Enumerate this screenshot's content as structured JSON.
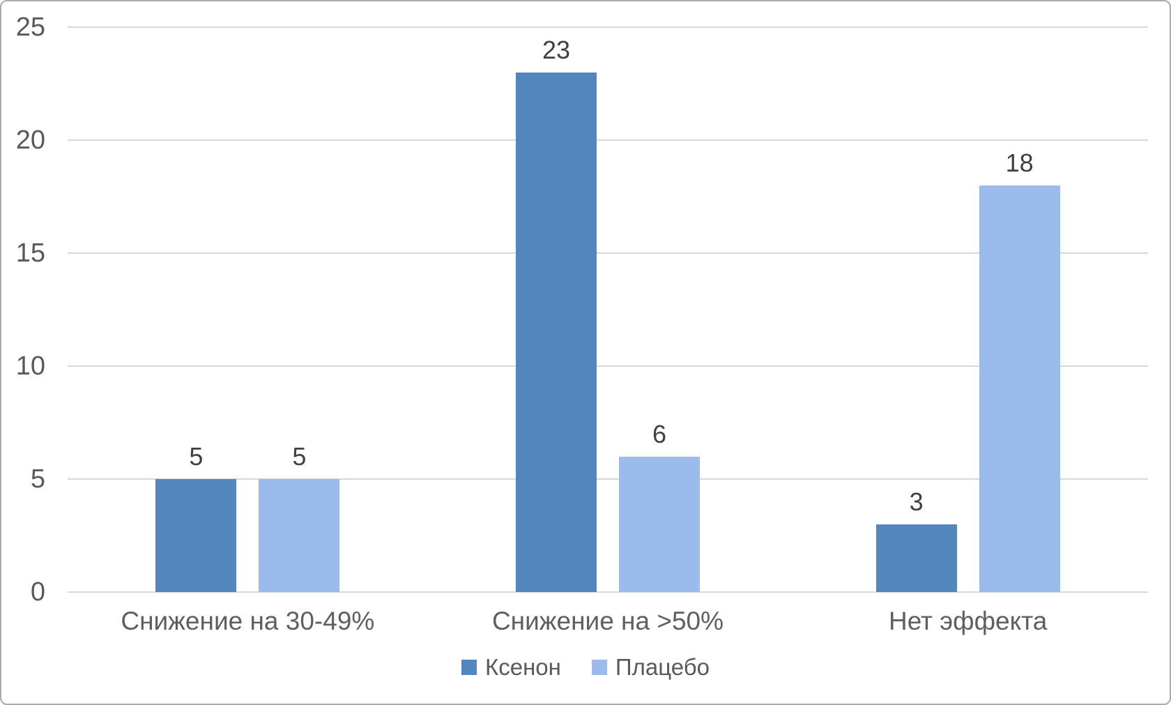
{
  "chart_data": {
    "type": "bar",
    "title": "",
    "xlabel": "",
    "ylabel": "",
    "categories": [
      "Снижение на 30-49%",
      "Снижение на >50%",
      "Нет эффекта"
    ],
    "series": [
      {
        "name": "Ксенон",
        "color": "#5386bc",
        "values": [
          5,
          23,
          3
        ]
      },
      {
        "name": "Плацебо",
        "color": "#9abbec",
        "values": [
          5,
          6,
          18
        ]
      }
    ],
    "ylim": [
      0,
      25
    ],
    "yticks": [
      0,
      5,
      10,
      15,
      20,
      25
    ],
    "grid": true,
    "legend_position": "bottom"
  },
  "colors": {
    "gridline": "#d9d9d9",
    "axis_text": "#595959",
    "value_label_text": "#404040",
    "frame_border": "#ababab",
    "background": "#ffffff"
  }
}
